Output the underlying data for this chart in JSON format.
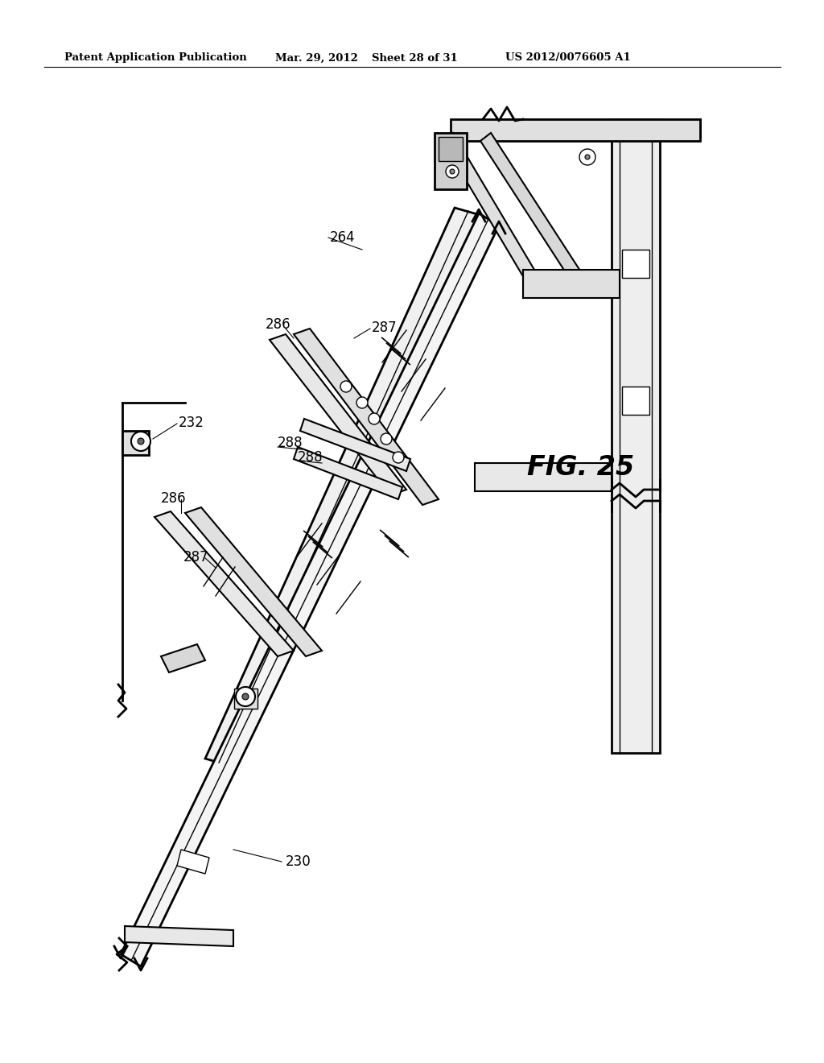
{
  "bg_color": "#ffffff",
  "header_text": "Patent Application Publication",
  "header_date": "Mar. 29, 2012",
  "header_sheet": "Sheet 28 of 31",
  "header_patent": "US 2012/0076605 A1",
  "figure_label": "FIG. 25"
}
